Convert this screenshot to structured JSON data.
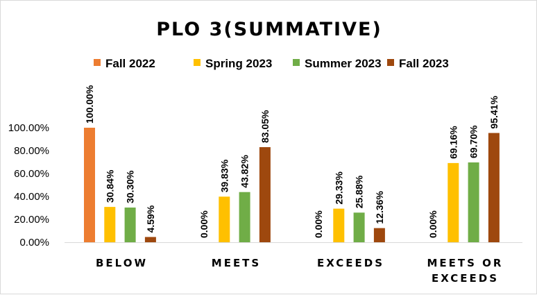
{
  "chart_data": {
    "type": "bar",
    "title": "PLO 3(SUMMATIVE)",
    "categories": [
      [
        "BELOW"
      ],
      [
        "MEETS"
      ],
      [
        "EXCEEDS"
      ],
      [
        "MEETS OR",
        "EXCEEDS"
      ]
    ],
    "series": [
      {
        "name": "Fall 2022",
        "color": "#ED7D31",
        "values": [
          100.0,
          0.0,
          0.0,
          0.0
        ]
      },
      {
        "name": "Spring 2023",
        "color": "#FFC000",
        "values": [
          30.84,
          39.83,
          29.33,
          69.16
        ]
      },
      {
        "name": "Summer 2023",
        "color": "#70AD47",
        "values": [
          30.3,
          43.82,
          25.88,
          69.7
        ]
      },
      {
        "name": "Fall 2023",
        "color": "#9E480E",
        "values": [
          4.59,
          83.05,
          12.36,
          95.41
        ]
      }
    ],
    "data_label_suffix": "%",
    "data_label_decimals": 2,
    "ylim": [
      0,
      100
    ],
    "yticks": [
      "0.00%",
      "20.00%",
      "40.00%",
      "60.00%",
      "80.00%",
      "100.00%"
    ],
    "legend_position": "top",
    "grid": false
  }
}
